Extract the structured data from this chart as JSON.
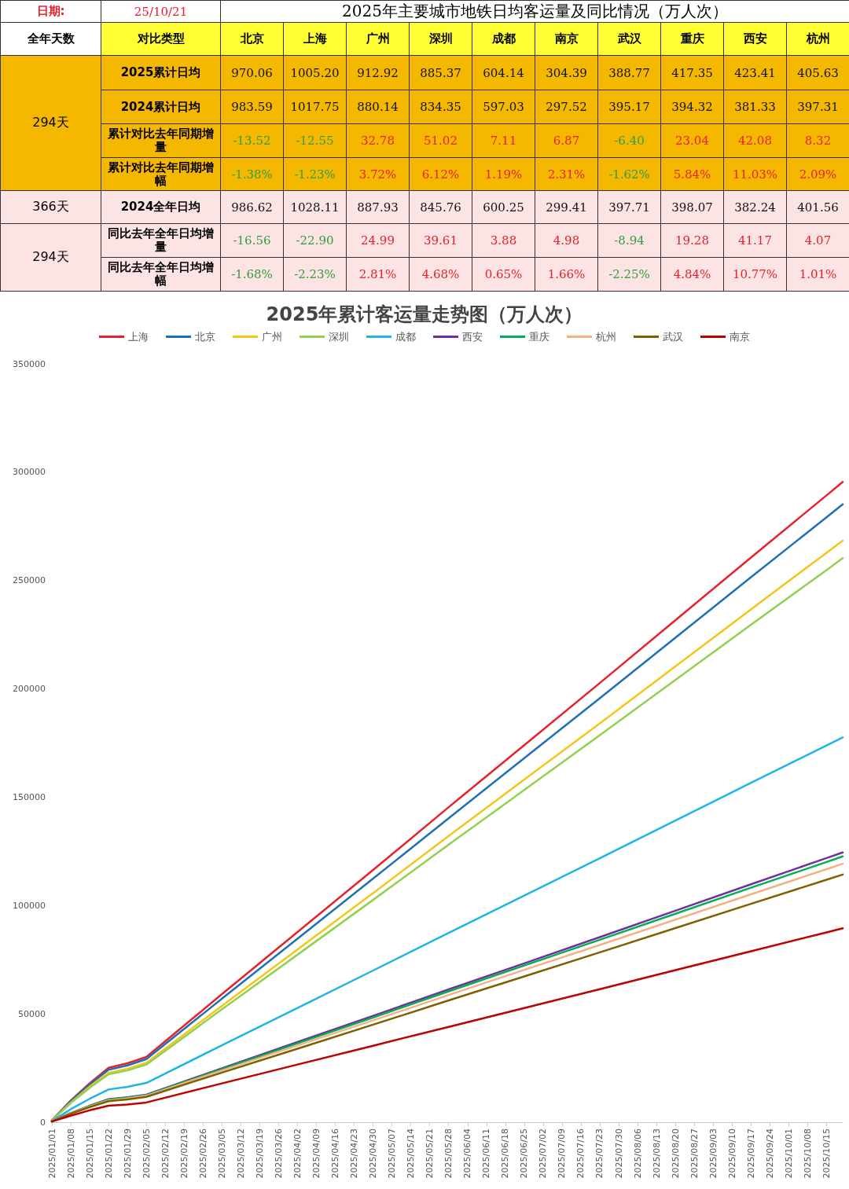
{
  "chart_data": [
    {
      "type": "other",
      "title": "2025年主要城市地铁日均客运量及同比情况（万人次）",
      "annotations": [
        "日期:",
        "25/10/21",
        "全年天数",
        "对比类型",
        "294天",
        "366天",
        "294天"
      ],
      "categories": [
        "北京",
        "上海",
        "广州",
        "深圳",
        "成都",
        "南京",
        "武汉",
        "重庆",
        "西安",
        "杭州"
      ],
      "y_categories": [
        "2025累计日均",
        "2024累计日均",
        "累计对比去年同期增量",
        "累计对比去年同期增幅",
        "2024全年日均",
        "同比去年全年日均增量",
        "同比去年全年日均增幅"
      ],
      "cells": [
        [
          "970.06",
          "1005.20",
          "912.92",
          "885.37",
          "604.14",
          "304.39",
          "388.77",
          "417.35",
          "423.41",
          "405.63"
        ],
        [
          "983.59",
          "1017.75",
          "880.14",
          "834.35",
          "597.03",
          "297.52",
          "395.17",
          "394.32",
          "381.33",
          "397.31"
        ],
        [
          "-13.52",
          "-12.55",
          "32.78",
          "51.02",
          "7.11",
          "6.87",
          "-6.40",
          "23.04",
          "42.08",
          "8.32"
        ],
        [
          "-1.38%",
          "-1.23%",
          "3.72%",
          "6.12%",
          "1.19%",
          "2.31%",
          "-1.62%",
          "5.84%",
          "11.03%",
          "2.09%"
        ],
        [
          "986.62",
          "1028.11",
          "887.93",
          "845.76",
          "600.25",
          "299.41",
          "397.71",
          "398.07",
          "382.24",
          "401.56"
        ],
        [
          "-16.56",
          "-22.90",
          "24.99",
          "39.61",
          "3.88",
          "4.98",
          "-8.94",
          "19.28",
          "41.17",
          "4.07"
        ],
        [
          "-1.68%",
          "-2.23%",
          "2.81%",
          "4.68%",
          "0.65%",
          "1.66%",
          "-2.25%",
          "4.84%",
          "10.77%",
          "1.01%"
        ]
      ]
    },
    {
      "type": "line",
      "title": "2025年累计客运量走势图（万人次）",
      "legend": "top",
      "grid": false,
      "marker": "none",
      "line_style": "solid",
      "x": [
        "2025-01-01",
        "2025-01-08",
        "2025-01-15",
        "2025-01-22",
        "2025-01-29",
        "2025-02-05",
        "2025-03-05",
        "2025-04-02",
        "2025-04-30",
        "2025-05-28",
        "2025-06-25",
        "2025-07-23",
        "2025-08-20",
        "2025-09-17",
        "2025-10-15",
        "2025-10-21"
      ],
      "xlim": [
        "2025-01-01",
        "2025-10-21"
      ],
      "xticks": [
        {
          "value": "2025-01-01",
          "label": "2025/01/01"
        },
        {
          "value": "2025-01-08",
          "label": "2025/01/08"
        },
        {
          "value": "2025-01-15",
          "label": "2025/01/15"
        },
        {
          "value": "2025-01-22",
          "label": "2025/01/22"
        },
        {
          "value": "2025-01-29",
          "label": "2025/01/29"
        },
        {
          "value": "2025-02-05",
          "label": "2025/02/05"
        },
        {
          "value": "2025-02-12",
          "label": "2025/02/12"
        },
        {
          "value": "2025-02-19",
          "label": "2025/02/19"
        },
        {
          "value": "2025-02-26",
          "label": "2025/02/26"
        },
        {
          "value": "2025-03-05",
          "label": "2025/03/05"
        },
        {
          "value": "2025-03-12",
          "label": "2025/03/12"
        },
        {
          "value": "2025-03-19",
          "label": "2025/03/19"
        },
        {
          "value": "2025-03-26",
          "label": "2025/03/26"
        },
        {
          "value": "2025-04-02",
          "label": "2025/04/02"
        },
        {
          "value": "2025-04-09",
          "label": "2025/04/09"
        },
        {
          "value": "2025-04-16",
          "label": "2025/04/16"
        },
        {
          "value": "2025-04-23",
          "label": "2025/04/23"
        },
        {
          "value": "2025-04-30",
          "label": "2025/04/30"
        },
        {
          "value": "2025-05-07",
          "label": "2025/05/07"
        },
        {
          "value": "2025-05-14",
          "label": "2025/05/14"
        },
        {
          "value": "2025-05-21",
          "label": "2025/05/21"
        },
        {
          "value": "2025-05-28",
          "label": "2025/05/28"
        },
        {
          "value": "2025-06-04",
          "label": "2025/06/04"
        },
        {
          "value": "2025-06-11",
          "label": "2025/06/11"
        },
        {
          "value": "2025-06-18",
          "label": "2025/06/18"
        },
        {
          "value": "2025-06-25",
          "label": "2025/06/25"
        },
        {
          "value": "2025-07-02",
          "label": "2025/07/02"
        },
        {
          "value": "2025-07-09",
          "label": "2025/07/09"
        },
        {
          "value": "2025-07-16",
          "label": "2025/07/16"
        },
        {
          "value": "2025-07-23",
          "label": "2025/07/23"
        },
        {
          "value": "2025-07-30",
          "label": "2025/07/30"
        },
        {
          "value": "2025-08-06",
          "label": "2025/08/06"
        },
        {
          "value": "2025-08-13",
          "label": "2025/08/13"
        },
        {
          "value": "2025-08-20",
          "label": "2025/08/20"
        },
        {
          "value": "2025-08-27",
          "label": "2025/08/27"
        },
        {
          "value": "2025-09-03",
          "label": "2025/09/03"
        },
        {
          "value": "2025-09-10",
          "label": "2025/09/10"
        },
        {
          "value": "2025-09-17",
          "label": "2025/09/17"
        },
        {
          "value": "2025-09-24",
          "label": "2025/09/24"
        },
        {
          "value": "2025-10-01",
          "label": "2025/10/01"
        },
        {
          "value": "2025-10-08",
          "label": "2025/10/08"
        },
        {
          "value": "2025-10-15",
          "label": "2025/10/15"
        }
      ],
      "ylim": [
        0,
        350000
      ],
      "yticks": [
        0,
        50000,
        100000,
        150000,
        200000,
        250000,
        300000,
        350000
      ],
      "series": [
        {
          "name": "上海",
          "color": "#e8202a",
          "values": [
            900,
            10000,
            18000,
            25100,
            27200,
            30100,
            59100,
            87800,
            116400,
            145400,
            174000,
            202700,
            231700,
            260600,
            289300,
            295500
          ]
        },
        {
          "name": "北京",
          "color": "#1f6fb5",
          "values": [
            900,
            9700,
            17400,
            24200,
            26200,
            29100,
            57000,
            84700,
            112400,
            140300,
            168000,
            195700,
            223600,
            251500,
            279200,
            285200
          ]
        },
        {
          "name": "广州",
          "color": "#f5c518",
          "values": [
            800,
            9100,
            16400,
            22800,
            24700,
            27400,
            53700,
            79700,
            105700,
            132100,
            158100,
            184100,
            210400,
            236700,
            262800,
            268400
          ]
        },
        {
          "name": "深圳",
          "color": "#92d050",
          "values": [
            800,
            8900,
            15900,
            22100,
            23900,
            26600,
            52100,
            77300,
            102600,
            128100,
            153300,
            178600,
            204100,
            229600,
            254800,
            260300
          ]
        },
        {
          "name": "成都",
          "color": "#1fb4e6",
          "values": [
            500,
            6000,
            10800,
            15100,
            16300,
            18100,
            35500,
            52700,
            70000,
            87400,
            104600,
            121800,
            139200,
            156600,
            173900,
            177600
          ]
        },
        {
          "name": "西安",
          "color": "#7030a0",
          "values": [
            400,
            4200,
            7600,
            10600,
            11500,
            12700,
            24900,
            37000,
            49100,
            61300,
            73300,
            85400,
            97600,
            109800,
            121900,
            124500
          ]
        },
        {
          "name": "重庆",
          "color": "#00b050",
          "values": [
            400,
            4200,
            7500,
            10400,
            11300,
            12500,
            24500,
            36400,
            48300,
            60400,
            72300,
            84200,
            96200,
            108200,
            120100,
            122700
          ]
        },
        {
          "name": "杭州",
          "color": "#f4b183",
          "values": [
            400,
            4100,
            7300,
            10100,
            11000,
            12200,
            23900,
            35400,
            47000,
            58700,
            70300,
            81800,
            93500,
            105200,
            116800,
            119300
          ]
        },
        {
          "name": "武汉",
          "color": "#7f6000",
          "values": [
            300,
            3900,
            7000,
            9700,
            10500,
            11700,
            22900,
            33900,
            45000,
            56200,
            67300,
            78400,
            89600,
            100800,
            111900,
            114300
          ]
        },
        {
          "name": "南京",
          "color": "#c00000",
          "values": [
            300,
            3000,
            5500,
            7600,
            8200,
            9100,
            17900,
            26600,
            35300,
            44000,
            52700,
            61400,
            70200,
            78900,
            87600,
            89500
          ]
        }
      ]
    }
  ]
}
